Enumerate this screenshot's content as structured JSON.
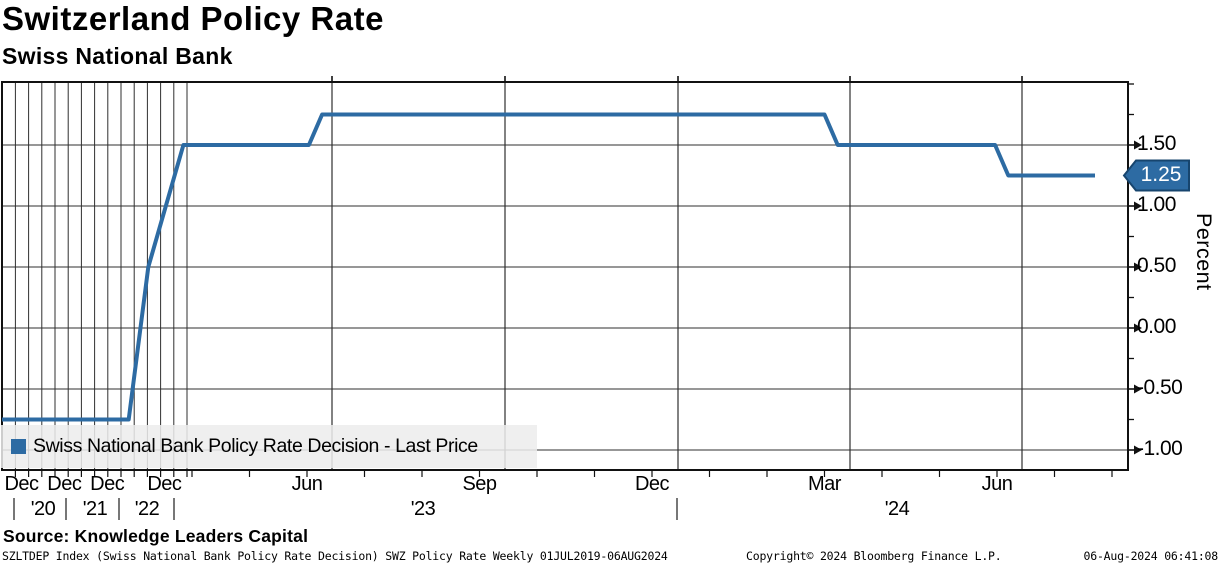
{
  "header": {
    "title": "Switzerland Policy Rate",
    "subtitle": "Swiss National Bank"
  },
  "legend": {
    "label": "Swiss National Bank Policy Rate Decision - Last Price",
    "swatch_color": "#2d6ba3"
  },
  "footer": {
    "source": "Source: Knowledge Leaders Capital",
    "ticker_line": "SZLTDEP Index (Swiss National Bank Policy Rate Decision) SWZ Policy Rate  Weekly 01JUL2019-06AUG2024",
    "copyright": "Copyright© 2024 Bloomberg Finance L.P.",
    "timestamp": "06-Aug-2024 06:41:08"
  },
  "chart_data": {
    "type": "line",
    "title": "Switzerland Policy Rate",
    "subtitle": "Swiss National Bank",
    "ylabel": "Percent",
    "xlabel": "",
    "frequency": "Weekly",
    "x_range": "01JUL2019-06AUG2024",
    "ylim": [
      -1.16,
      2.03
    ],
    "grid": true,
    "legend_position": "bottom-left",
    "accent_color": "#2d6ba3",
    "last_price": 1.25,
    "last_price_label": "1.25",
    "y_ticks": [
      {
        "value": 1.5,
        "label": "1.50"
      },
      {
        "value": 1.0,
        "label": "1.00"
      },
      {
        "value": 0.5,
        "label": "0.50"
      },
      {
        "value": 0.0,
        "label": "0.00"
      },
      {
        "value": -0.5,
        "label": "-0.50"
      },
      {
        "value": -1.0,
        "label": "-1.00"
      }
    ],
    "y_minor_ticks": [
      2.0,
      1.75,
      0.75,
      0.25,
      -0.25,
      -0.75
    ],
    "x_month_labels": [
      {
        "label": "Dec",
        "date": "2019-12-15"
      },
      {
        "label": "Dec",
        "date": "2020-12-15"
      },
      {
        "label": "Dec",
        "date": "2021-12-15"
      },
      {
        "label": "Dec",
        "date": "2022-12-15"
      },
      {
        "label": "Jun",
        "date": "2023-06-15"
      },
      {
        "label": "Sep",
        "date": "2023-09-15"
      },
      {
        "label": "Dec",
        "date": "2023-12-15"
      },
      {
        "label": "Mar",
        "date": "2024-03-15"
      },
      {
        "label": "Jun",
        "date": "2024-06-15"
      }
    ],
    "x_year_labels": [
      "'20",
      "'21",
      "'22",
      "'23",
      "'24"
    ],
    "series": [
      {
        "name": "Swiss National Bank Policy Rate Decision - Last Price",
        "color": "#2d6ba3",
        "points": [
          [
            "2019-07-01",
            -0.75
          ],
          [
            "2022-06-10",
            -0.75
          ],
          [
            "2022-09-22",
            0.5
          ],
          [
            "2023-03-24",
            1.5
          ],
          [
            "2023-06-16",
            1.5
          ],
          [
            "2023-06-23",
            1.75
          ],
          [
            "2024-03-15",
            1.75
          ],
          [
            "2024-03-22",
            1.5
          ],
          [
            "2024-06-14",
            1.5
          ],
          [
            "2024-06-21",
            1.25
          ],
          [
            "2024-08-06",
            1.25
          ]
        ]
      }
    ]
  }
}
